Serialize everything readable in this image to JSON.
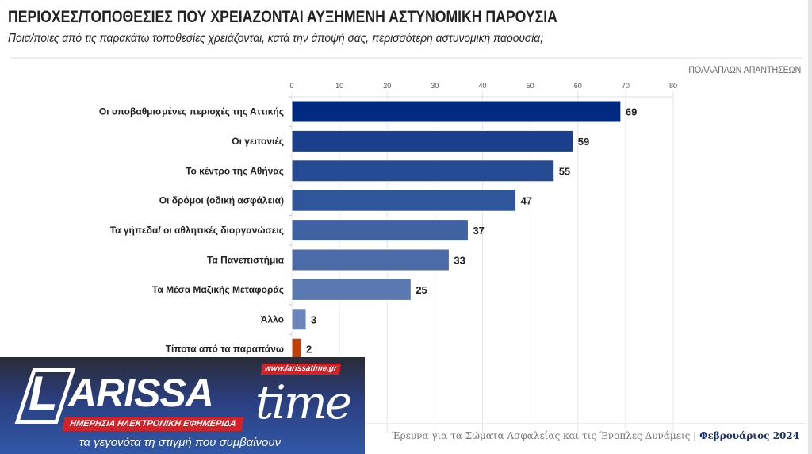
{
  "header": {
    "title": "ΠΕΡΙΟΧΕΣ/ΤΟΠΟΘΕΣΙΕΣ ΠΟΥ ΧΡΕΙΑΖΟΝΤΑΙ ΑΥΞΗΜΕΝΗ ΑΣΤΥΝΟΜΙΚΗ ΠΑΡΟΥΣΙΑ",
    "subtitle": "Ποια/ποιες από τις παρακάτω τοποθεσίες χρειάζονται, κατά την άποψή σας, περισσότερη αστυνομική παρουσία;",
    "note": "ΠΟΛΛΑΠΛΩΝ ΑΠΑΝΤΗΣΕΩΝ"
  },
  "chart_data": {
    "type": "bar",
    "orientation": "horizontal",
    "title": "ΠΕΡΙΟΧΕΣ/ΤΟΠΟΘΕΣΙΕΣ ΠΟΥ ΧΡΕΙΑΖΟΝΤΑΙ ΑΥΞΗΜΕΝΗ ΑΣΤΥΝΟΜΙΚΗ ΠΑΡΟΥΣΙΑ",
    "categories": [
      "Οι υποβαθμισμένες περιοχές της Αττικής",
      "Οι γειτονιές",
      "Το κέντρο της Αθήνας",
      "Οι δρόμοι (οδική ασφάλεια)",
      "Τα γήπεδα/ οι αθλητικές διοργανώσεις",
      "Τα Πανεπιστήμια",
      "Τα Μέσα Μαζικής Μεταφοράς",
      "Άλλο",
      "Τίποτα από τα παραπάνω"
    ],
    "values": [
      69,
      59,
      55,
      47,
      37,
      33,
      25,
      3,
      2
    ],
    "colors": [
      "#002a80",
      "#1a3f8c",
      "#254b94",
      "#2f559b",
      "#3f62a3",
      "#4a6ba8",
      "#5a79b0",
      "#6a86bb",
      "#c03e0a"
    ],
    "xlim": [
      0,
      80
    ],
    "xticks": [
      0,
      10,
      20,
      30,
      40,
      50,
      60,
      70,
      80
    ],
    "grid": true,
    "xlabel": "",
    "ylabel": ""
  },
  "footer": {
    "source": "Έρευνα για τα Σώματα Ασφαλείας και τις Ένοπλες Δυνάμεις |",
    "date": "Φεβρουάριος 2024"
  },
  "logo": {
    "name_l": "L",
    "name_rest": "ARISSA",
    "name_time": "time",
    "url": "www.larissatime.gr",
    "tagline": "ΗΜΕΡΗΣΙΑ ΗΛΕΚΤΡΟΝΙΚΗ ΕΦΗΜΕΡΙΔΑ",
    "slogan": "τα γεγονότα τη στιγμή που συμβαίνουν"
  }
}
